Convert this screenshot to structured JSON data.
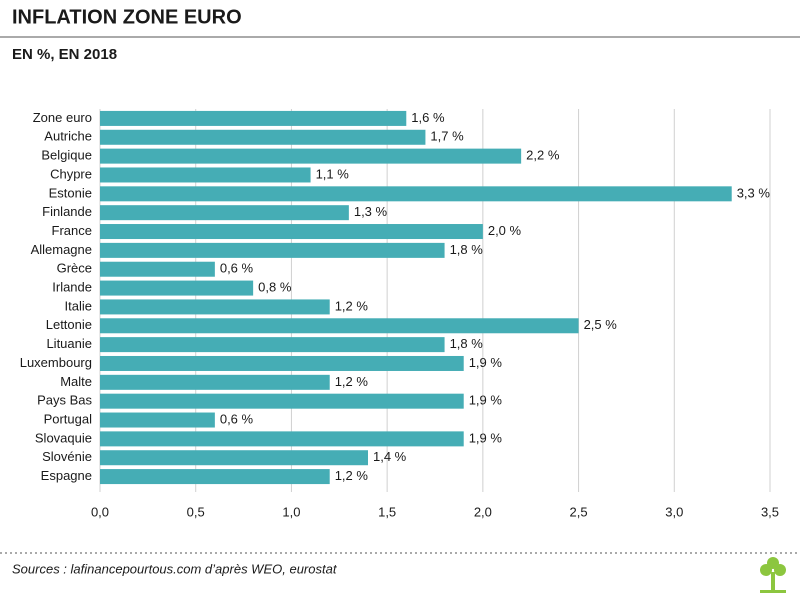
{
  "chart_data": {
    "type": "hbar",
    "title": "INFLATION ZONE EURO",
    "subtitle": "EN %, EN 2018",
    "categories": [
      "Zone euro",
      "Autriche",
      "Belgique",
      "Chypre",
      "Estonie",
      "Finlande",
      "France",
      "Allemagne",
      "Grèce",
      "Irlande",
      "Italie",
      "Lettonie",
      "Lituanie",
      "Luxembourg",
      "Malte",
      "Pays Bas",
      "Portugal",
      "Slovaquie",
      "Slovénie",
      "Espagne"
    ],
    "values": [
      1.6,
      1.7,
      2.2,
      1.1,
      3.3,
      1.3,
      2.0,
      1.8,
      0.6,
      0.8,
      1.2,
      2.5,
      1.8,
      1.9,
      1.2,
      1.9,
      0.6,
      1.9,
      1.4,
      1.2
    ],
    "value_labels": [
      "1,6 %",
      "1,7 %",
      "2,2 %",
      "1,1 %",
      "3,3 %",
      "1,3 %",
      "2,0 %",
      "1,8 %",
      "0,6 %",
      "0,8 %",
      "1,2 %",
      "2,5 %",
      "1,8 %",
      "1,9 %",
      "1,2 %",
      "1,9 %",
      "0,6 %",
      "1,9 %",
      "1,4 %",
      "1,2 %"
    ],
    "color": "#45adb5",
    "xlim": [
      0,
      3.5
    ],
    "xticks": [
      {
        "value": 0,
        "label": "0,0"
      },
      {
        "value": 0.5,
        "label": "0,5"
      },
      {
        "value": 1,
        "label": "1,0"
      },
      {
        "value": 1.5,
        "label": "1,5"
      },
      {
        "value": 2,
        "label": "2,0"
      },
      {
        "value": 2.5,
        "label": "2,5"
      },
      {
        "value": 3,
        "label": "3,0"
      },
      {
        "value": 3.5,
        "label": "3,5"
      }
    ],
    "grid": true,
    "source": "Sources : lafinancepourtous.com d’après WEO, eurostat"
  }
}
